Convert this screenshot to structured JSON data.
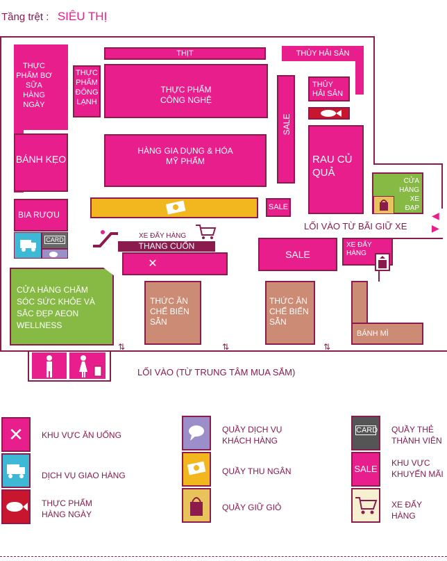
{
  "header": {
    "floor_label": "Tầng trệt :",
    "floor_name": "SIÊU THỊ"
  },
  "zones": {
    "fresh_milk": "THỰC PHẨM BƠ SỮA HÀNG NGÀY",
    "meat": "THỊT",
    "seafood_top": "THỦY HẢI SẢN",
    "frozen": "THỰC PHẨM ĐÔNG LẠNH",
    "processed": "THỰC PHẨM CÔNG NGHỆ",
    "seafood_mid": "THỦY HẢI SẢN",
    "sale_vertical": "SALE",
    "candy": "BÁNH KẸO",
    "household": "HÀNG GIA DỤNG & HÓA MỸ PHẨM",
    "veg": "RAU CỦ QUẢ",
    "bike_shop": "CỬA HÀNG XE ĐẠP AEON",
    "beer": "BIA RƯỢU",
    "sale_small": "SALE",
    "parking_entrance": "LỐI VÀO TỪ BÃI GIỮ XE",
    "cart_label": "XE ĐẨY HÀNG",
    "escalator": "THANG CUỐN",
    "sale_big": "SALE",
    "cart_right": "XE ĐẨY HÀNG",
    "wellness": "CỬA HÀNG CHĂM SÓC SỨC KHỎE VÀ SẮC ĐẸP AEON WELLNESS",
    "deli1": "THỨC ĂN CHẾ BIẾN SẴN",
    "deli2": "THỨC ĂN CHẾ BIẾN SẴN",
    "bakery": "BÁNH MÌ",
    "card_text": "CARD",
    "main_entrance": "LỐI VÀO (TỪ TRUNG TÂM MUA SẮM)"
  },
  "legend": {
    "dining": "KHU VỰC ĂN UỐNG",
    "delivery": "DỊCH VỤ GIAO HÀNG",
    "daily_food": "THỰC PHẨM HÀNG NGÀY",
    "customer_service": "QUẦY DỊCH VỤ KHÁCH HÀNG",
    "cashier": "QUẦY THU NGÂN",
    "bag_keep": "QUẦY GIỮ GIỎ",
    "member_card": "QUẦY THẺ THÀNH VIÊN",
    "card_icon_text": "CARD",
    "promo": "KHU VỰC KHUYẾN MÃI",
    "sale_icon_text": "SALE",
    "cart": "XE ĐẨY HÀNG"
  },
  "colors": {
    "pink": "#e81e8c",
    "plum": "#8b1a4d",
    "tan": "#cc8b74",
    "green": "#86ba45",
    "gold": "#f2b71f",
    "cyan": "#3db9d6",
    "lavender": "#9b8ec9"
  }
}
